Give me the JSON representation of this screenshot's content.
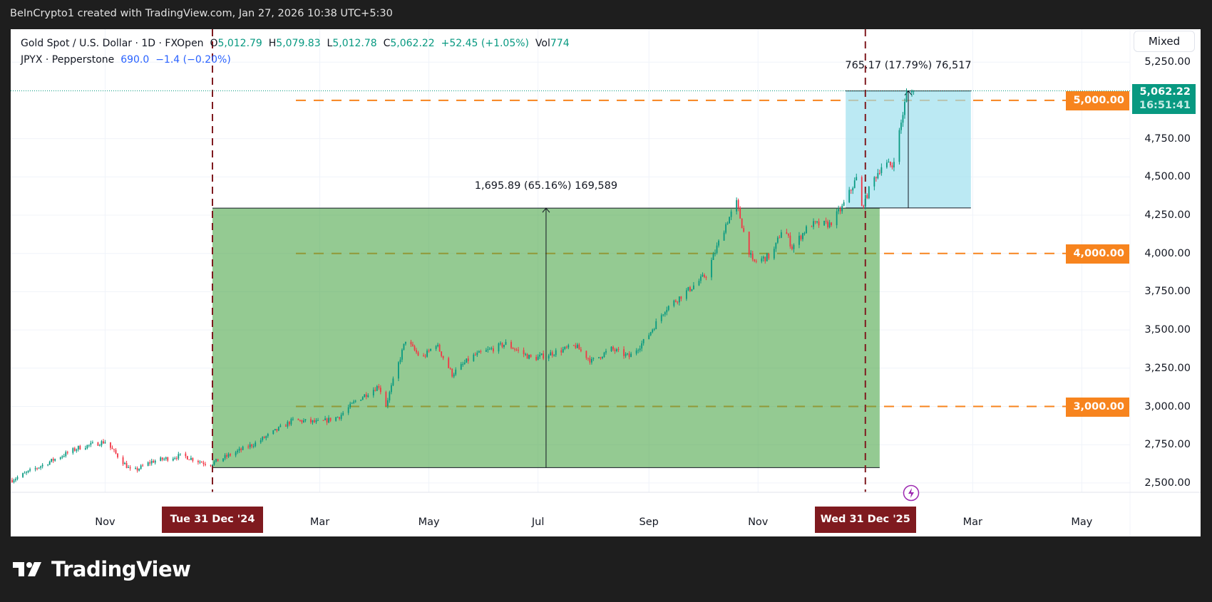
{
  "topbar": {
    "text": "BeInCrypto1 created with TradingView.com, Jan 27, 2026 10:38 UTC+5:30"
  },
  "legend": {
    "symbol": "Gold Spot / U.S. Dollar · 1D · FXOpen",
    "o_label": "O",
    "o": "5,012.79",
    "h_label": "H",
    "h": "5,079.83",
    "l_label": "L",
    "l": "5,012.78",
    "c_label": "C",
    "c": "5,062.22",
    "change": "+52.45 (+1.05%)",
    "vol_label": "Vol",
    "vol": "774",
    "overlay": "JPYX · Pepperstone",
    "overlay_value": "690.0",
    "overlay_change": "−1.4 (−0.20%)"
  },
  "scale_mode_button": "Mixed",
  "price_axis": {
    "ticks": [
      {
        "price": 5250,
        "label": "5,250.00"
      },
      {
        "price": 4750,
        "label": "4,750.00"
      },
      {
        "price": 4500,
        "label": "4,500.00"
      },
      {
        "price": 4250,
        "label": "4,250.00"
      },
      {
        "price": 4000,
        "label": "4,000.00"
      },
      {
        "price": 3750,
        "label": "3,750.00"
      },
      {
        "price": 3500,
        "label": "3,500.00"
      },
      {
        "price": 3250,
        "label": "3,250.00"
      },
      {
        "price": 3000,
        "label": "3,000.00"
      },
      {
        "price": 2750,
        "label": "2,750.00"
      },
      {
        "price": 2500,
        "label": "2,500.00"
      }
    ],
    "last_price": {
      "price": 5062.22,
      "label": "5,062.22",
      "countdown": "16:51:41"
    },
    "levels": [
      {
        "price": 5000,
        "label": "5,000.00"
      },
      {
        "price": 4000,
        "label": "4,000.00"
      },
      {
        "price": 3000,
        "label": "3,000.00"
      }
    ]
  },
  "time_axis": {
    "labels": [
      {
        "date": "2024-11-01",
        "label": "Nov"
      },
      {
        "date": "2025-03-01",
        "label": "Mar"
      },
      {
        "date": "2025-05-01",
        "label": "May"
      },
      {
        "date": "2025-07-01",
        "label": "Jul"
      },
      {
        "date": "2025-09-01",
        "label": "Sep"
      },
      {
        "date": "2025-11-01",
        "label": "Nov"
      },
      {
        "date": "2026-03-01",
        "label": "Mar"
      },
      {
        "date": "2026-05-01",
        "label": "May"
      }
    ],
    "markers": [
      {
        "date": "2024-12-31",
        "label": "Tue 31 Dec '24"
      },
      {
        "date": "2025-12-31",
        "label": "Wed 31 Dec '25"
      }
    ]
  },
  "measurements": [
    {
      "label": "1,695.89 (65.16%) 169,589",
      "from_date": "2024-12-31",
      "to_date": "2026-01-08",
      "low": 2600,
      "high": 4296
    },
    {
      "label": "765.17 (17.79%) 76,517",
      "from_date": "2025-12-20",
      "to_date": "2026-02-28",
      "low": 4297,
      "high": 5062
    }
  ],
  "price_path": [
    [
      "2024-09-10",
      2520
    ],
    [
      "2024-10-17",
      2730
    ],
    [
      "2024-11-01",
      2770
    ],
    [
      "2024-11-16",
      2570
    ],
    [
      "2024-11-27",
      2640
    ],
    [
      "2024-12-14",
      2680
    ],
    [
      "2024-12-29",
      2620
    ],
    [
      "2025-01-24",
      2760
    ],
    [
      "2025-02-14",
      2910
    ],
    [
      "2025-03-01",
      2895
    ],
    [
      "2025-03-12",
      2935
    ],
    [
      "2025-03-21",
      3035
    ],
    [
      "2025-04-03",
      3135
    ],
    [
      "2025-04-07",
      3010
    ],
    [
      "2025-04-18",
      3435
    ],
    [
      "2025-04-27",
      3310
    ],
    [
      "2025-05-05",
      3410
    ],
    [
      "2025-05-14",
      3210
    ],
    [
      "2025-05-25",
      3325
    ],
    [
      "2025-06-13",
      3410
    ],
    [
      "2025-06-28",
      3310
    ],
    [
      "2025-07-22",
      3395
    ],
    [
      "2025-07-31",
      3295
    ],
    [
      "2025-08-11",
      3375
    ],
    [
      "2025-08-21",
      3325
    ],
    [
      "2025-08-30",
      3435
    ],
    [
      "2025-09-10",
      3635
    ],
    [
      "2025-09-23",
      3760
    ],
    [
      "2025-10-03",
      3860
    ],
    [
      "2025-10-14",
      4190
    ],
    [
      "2025-10-20",
      4330
    ],
    [
      "2025-10-25",
      4090
    ],
    [
      "2025-10-29",
      3940
    ],
    [
      "2025-11-09",
      3990
    ],
    [
      "2025-11-15",
      4180
    ],
    [
      "2025-11-20",
      4040
    ],
    [
      "2025-11-30",
      4190
    ],
    [
      "2025-12-11",
      4190
    ],
    [
      "2025-12-18",
      4300
    ],
    [
      "2025-12-26",
      4490
    ],
    [
      "2025-12-29",
      4300
    ],
    [
      "2026-01-04",
      4470
    ],
    [
      "2026-01-10",
      4590
    ],
    [
      "2026-01-15",
      4570
    ],
    [
      "2026-01-19",
      4790
    ],
    [
      "2026-01-23",
      5040
    ],
    [
      "2026-01-27",
      5062.22
    ]
  ],
  "colors": {
    "up": "#089981",
    "down": "#f23645",
    "level": "#f7841e",
    "marker": "#7f1a1f",
    "range_up": "#4ca64a",
    "range_recent": "#9ee0ee"
  },
  "footer": {
    "brand": "TradingView"
  }
}
